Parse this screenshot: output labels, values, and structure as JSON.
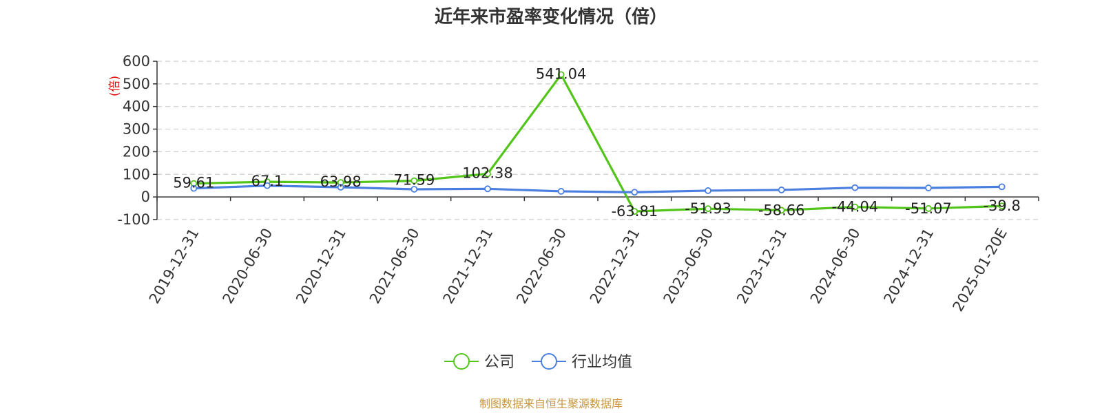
{
  "chart_data": {
    "type": "line",
    "title": "近年来市盈率变化情况（倍）",
    "ylabel": "(倍)",
    "ylim": [
      -100,
      600
    ],
    "yticks": [
      -100,
      0,
      100,
      200,
      300,
      400,
      500,
      600
    ],
    "grid": true,
    "categories": [
      "2019-12-31",
      "2020-06-30",
      "2020-12-31",
      "2021-06-30",
      "2021-12-31",
      "2022-06-30",
      "2022-12-31",
      "2023-06-30",
      "2023-12-31",
      "2024-06-30",
      "2024-12-31",
      "2025-01-20E"
    ],
    "series": [
      {
        "name": "公司",
        "color": "#52c41a",
        "values": [
          59.61,
          67.1,
          63.98,
          71.59,
          102.38,
          541.04,
          -63.81,
          -51.93,
          -58.66,
          -44.04,
          -51.07,
          -39.8
        ],
        "labels": [
          "59.61",
          "67.1",
          "63.98",
          "71.59",
          "102.38",
          "541.04",
          "-63.81",
          "-51.93",
          "-58.66",
          "-44.04",
          "-51.07",
          "-39.8"
        ]
      },
      {
        "name": "行业均值",
        "color": "#4a7fe0",
        "values": [
          38,
          50,
          43,
          34,
          36,
          25,
          21,
          28,
          31,
          41,
          40,
          45
        ]
      }
    ],
    "legend_position": "bottom-center",
    "source": "制图数据来自恒生聚源数据库"
  }
}
